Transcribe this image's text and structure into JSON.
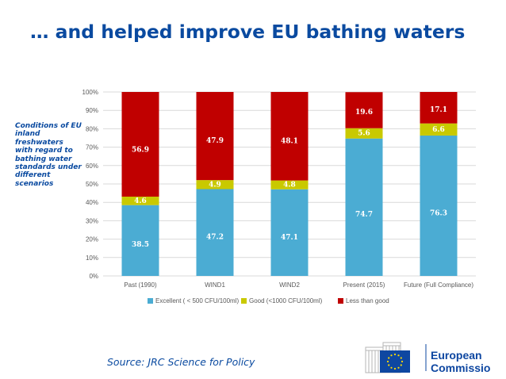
{
  "slide": {
    "title": "… and helped improve EU bathing waters",
    "sidenote": "Conditions of EU inland freshwaters with regard to bathing water standards under different scenarios",
    "source": "Source: JRC Science for Policy",
    "logo_line1": "European",
    "logo_line2": "Commission"
  },
  "colors": {
    "title": "#0a4aa0",
    "excellent": "#4bacd3",
    "good": "#c9c900",
    "less": "#c00000",
    "grid": "#d9d9d9"
  },
  "chart_data": {
    "type": "bar",
    "stacked": true,
    "categories": [
      "Past (1990)",
      "WIND1",
      "WIND2",
      "Present (2015)",
      "Future (Full Compliance)"
    ],
    "series": [
      {
        "name": "Excellent ( < 500 CFU/100ml)",
        "values": [
          38.5,
          47.2,
          47.1,
          74.7,
          76.3
        ],
        "labels": [
          "38.5",
          "47.2",
          "47.1",
          "74.7",
          "76.3"
        ]
      },
      {
        "name": "Good (<1000 CFU/100ml)",
        "values": [
          4.6,
          4.9,
          4.8,
          5.6,
          6.6
        ],
        "labels": [
          "4.6",
          "4.9",
          "4.8",
          "5.6",
          "6.6"
        ]
      },
      {
        "name": "Less than good",
        "values": [
          56.9,
          47.9,
          48.1,
          19.6,
          17.1
        ],
        "labels": [
          "56.9",
          "47.9",
          "48.1",
          "19.6",
          "17.1"
        ]
      }
    ],
    "ylim": [
      0,
      100
    ],
    "yticks": [
      "0%",
      "10%",
      "20%",
      "30%",
      "40%",
      "50%",
      "60%",
      "70%",
      "80%",
      "90%",
      "100%"
    ],
    "grid": true,
    "legend_position": "bottom"
  }
}
